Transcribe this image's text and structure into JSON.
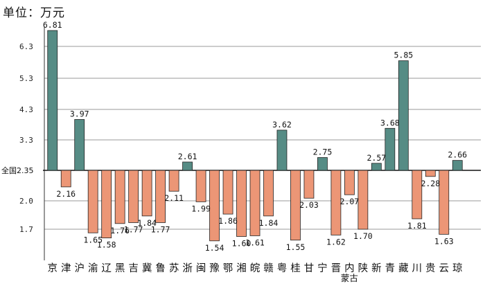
{
  "chart_data": {
    "type": "bar",
    "unit_label": "单位：万元",
    "baseline": {
      "label": "全国",
      "value": 2.35,
      "display": "全国2.35"
    },
    "y_ticks": [
      {
        "value": 1.7,
        "label": "1.7"
      },
      {
        "value": 2.0,
        "label": "2.0"
      },
      {
        "value": 3.3,
        "label": "3.3"
      },
      {
        "value": 4.3,
        "label": "4.3"
      },
      {
        "value": 5.3,
        "label": "5.3"
      },
      {
        "value": 6.3,
        "label": "6.3"
      }
    ],
    "colors": {
      "above": "#568c85",
      "below": "#ec9676",
      "grid": "#9a9a9a",
      "baseline": "#111111"
    },
    "categories": [
      "京",
      "津",
      "沪",
      "渝",
      "辽",
      "黑",
      "吉",
      "冀",
      "鲁",
      "苏",
      "浙",
      "闽",
      "豫",
      "鄂",
      "湘",
      "皖",
      "赣",
      "粤",
      "桂",
      "甘",
      "宁",
      "晋",
      "内蒙古",
      "陕",
      "新",
      "青",
      "藏",
      "川",
      "贵",
      "云",
      "琼"
    ],
    "values": [
      6.81,
      2.16,
      3.97,
      1.65,
      1.58,
      1.76,
      1.77,
      1.84,
      1.77,
      2.11,
      2.61,
      1.99,
      1.54,
      1.86,
      1.6,
      1.61,
      1.84,
      3.62,
      1.55,
      2.03,
      2.75,
      1.62,
      2.07,
      1.7,
      2.57,
      3.68,
      5.85,
      1.81,
      2.28,
      1.63,
      2.66
    ],
    "value_labels": [
      "6.81",
      "2.16",
      "3.97",
      "1.65",
      "1.58",
      "1.76",
      "1.77",
      "1.84",
      "1.77",
      "2.11",
      "2.61",
      "1.99",
      "1.54",
      "1.86",
      "1.60",
      "1.61",
      "1.84",
      "3.62",
      "1.55",
      "2.03",
      "2.75",
      "1.62",
      "2.07",
      "1.70",
      "2.57",
      "3.68",
      "5.85",
      "1.81",
      "2.28",
      "1.63",
      "2.66"
    ]
  }
}
